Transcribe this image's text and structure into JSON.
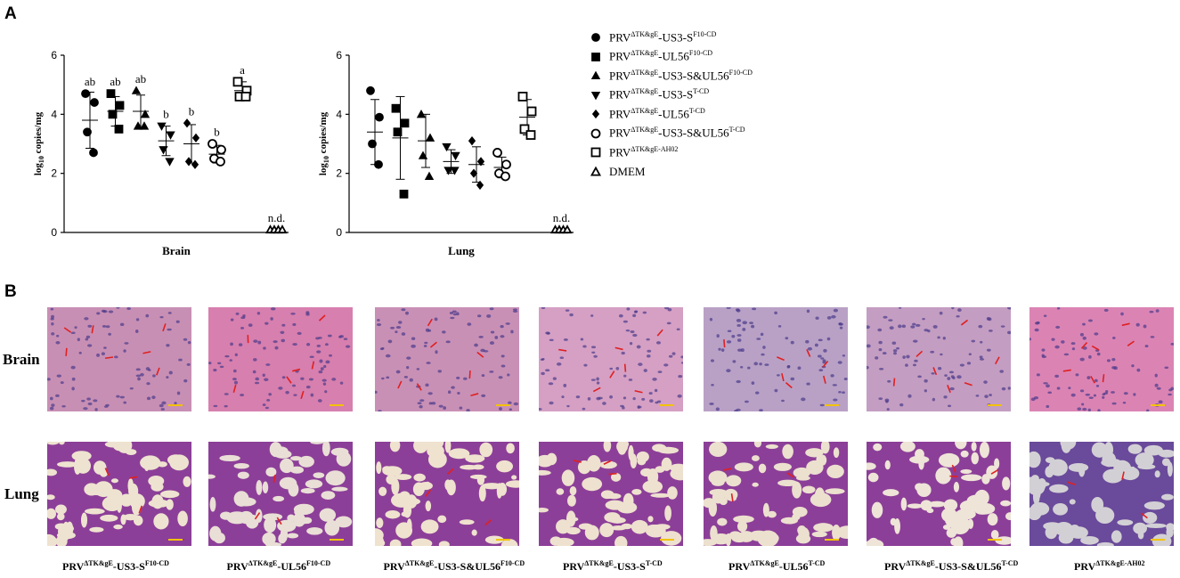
{
  "panel_a": {
    "label": "A"
  },
  "panel_b": {
    "label": "B"
  },
  "legend": [
    {
      "marker": "circle-filled",
      "base": "PRV",
      "sup1": "ΔTK&gE",
      "mid": "-US3-S",
      "sup2": "F10-CD"
    },
    {
      "marker": "square-filled",
      "base": "PRV",
      "sup1": "ΔTK&gE",
      "mid": "-UL56",
      "sup2": "F10-CD"
    },
    {
      "marker": "triangle-filled",
      "base": "PRV",
      "sup1": "ΔTK&gE",
      "mid": "-US3-S&UL56",
      "sup2": "F10-CD"
    },
    {
      "marker": "triangle-down-filled",
      "base": "PRV",
      "sup1": "ΔTK&gE",
      "mid": "-US3-S",
      "sup2": "T-CD"
    },
    {
      "marker": "diamond-filled",
      "base": "PRV",
      "sup1": "ΔTK&gE",
      "mid": "-UL56",
      "sup2": "T-CD"
    },
    {
      "marker": "circle-open",
      "base": "PRV",
      "sup1": "ΔTK&gE",
      "mid": "-US3-S&UL56",
      "sup2": "T-CD"
    },
    {
      "marker": "square-open",
      "base": "PRV",
      "sup1": "ΔTK&gE-AH02",
      "mid": "",
      "sup2": ""
    },
    {
      "marker": "triangle-open",
      "base": "DMEM",
      "sup1": "",
      "mid": "",
      "sup2": ""
    }
  ],
  "chart_data": [
    {
      "type": "scatter",
      "title": "",
      "xlabel": "Brain",
      "ylabel_parts": [
        "log",
        "10",
        " copies/mg"
      ],
      "ylim": [
        0,
        6
      ],
      "yticks": [
        "0",
        "2",
        "4",
        "6"
      ],
      "groups": [
        {
          "marker": "circle-filled",
          "points": [
            4.7,
            4.4,
            3.4,
            2.7
          ],
          "mean": 3.8,
          "sd": 0.95,
          "letter": "ab"
        },
        {
          "marker": "square-filled",
          "points": [
            4.7,
            4.3,
            4.0,
            3.5
          ],
          "mean": 4.1,
          "sd": 0.5,
          "letter": "ab"
        },
        {
          "marker": "triangle-filled",
          "points": [
            4.8,
            4.0,
            3.6,
            3.6
          ],
          "mean": 4.1,
          "sd": 0.55,
          "letter": "ab"
        },
        {
          "marker": "triangle-down-filled",
          "points": [
            3.6,
            3.3,
            2.8,
            2.4
          ],
          "mean": 3.1,
          "sd": 0.5,
          "letter": "b"
        },
        {
          "marker": "diamond-filled",
          "points": [
            3.7,
            3.2,
            2.4,
            2.3
          ],
          "mean": 3.0,
          "sd": 0.65,
          "letter": "b"
        },
        {
          "marker": "circle-open",
          "points": [
            3.0,
            2.8,
            2.5,
            2.4
          ],
          "mean": 2.65,
          "sd": 0.3,
          "letter": "b"
        },
        {
          "marker": "square-open",
          "points": [
            5.1,
            4.8,
            4.6,
            4.6
          ],
          "mean": 4.8,
          "sd": 0.3,
          "letter": "a"
        },
        {
          "marker": "triangle-open",
          "points": [
            0,
            0,
            0,
            0
          ],
          "mean": 0,
          "sd": 0,
          "letter": "n.d."
        }
      ]
    },
    {
      "type": "scatter",
      "title": "",
      "xlabel": "Lung",
      "ylabel_parts": [
        "log",
        "10",
        " copies/mg"
      ],
      "ylim": [
        0,
        6
      ],
      "yticks": [
        "0",
        "2",
        "4",
        "6"
      ],
      "groups": [
        {
          "marker": "circle-filled",
          "points": [
            4.8,
            3.9,
            3.0,
            2.3
          ],
          "mean": 3.4,
          "sd": 1.1,
          "letter": ""
        },
        {
          "marker": "square-filled",
          "points": [
            4.2,
            3.7,
            3.4,
            1.3
          ],
          "mean": 3.2,
          "sd": 1.4,
          "letter": ""
        },
        {
          "marker": "triangle-filled",
          "points": [
            4.0,
            3.2,
            2.6,
            1.9
          ],
          "mean": 3.1,
          "sd": 0.9,
          "letter": ""
        },
        {
          "marker": "triangle-down-filled",
          "points": [
            2.9,
            2.6,
            2.1,
            2.1
          ],
          "mean": 2.4,
          "sd": 0.4,
          "letter": ""
        },
        {
          "marker": "diamond-filled",
          "points": [
            3.1,
            2.4,
            2.0,
            1.6
          ],
          "mean": 2.3,
          "sd": 0.6,
          "letter": ""
        },
        {
          "marker": "circle-open",
          "points": [
            2.7,
            2.3,
            2.0,
            1.9
          ],
          "mean": 2.2,
          "sd": 0.35,
          "letter": ""
        },
        {
          "marker": "square-open",
          "points": [
            4.6,
            4.1,
            3.5,
            3.3
          ],
          "mean": 3.9,
          "sd": 0.6,
          "letter": ""
        },
        {
          "marker": "triangle-open",
          "points": [
            0,
            0,
            0,
            0
          ],
          "mean": 0,
          "sd": 0,
          "letter": "n.d."
        }
      ]
    }
  ],
  "micrographs": {
    "row_labels": [
      "Brain",
      "Lung"
    ],
    "brain_colors": [
      "#c88fb4",
      "#d77fae",
      "#c990b6",
      "#d5a0c4",
      "#b9a1c6",
      "#c49dc2",
      "#db84b4"
    ],
    "lung_colors": [
      "#eee3d0",
      "#e9dfd6",
      "#efe2cf",
      "#eee1cf",
      "#ece0cf",
      "#eee4d8",
      "#d2d0d5"
    ],
    "scale_bar_color": "#f2c300",
    "arrow_color": "#e02020",
    "captions": [
      {
        "base": "PRV",
        "sup1": "ΔTK&gE",
        "mid": "-US3-S",
        "sup2": "F10-CD"
      },
      {
        "base": "PRV",
        "sup1": "ΔTK&gE",
        "mid": "-UL56",
        "sup2": "F10-CD"
      },
      {
        "base": "PRV",
        "sup1": "ΔTK&gE",
        "mid": "-US3-S&UL56",
        "sup2": "F10-CD"
      },
      {
        "base": "PRV",
        "sup1": "ΔTK&gE",
        "mid": "-US3-S",
        "sup2": "T-CD"
      },
      {
        "base": "PRV",
        "sup1": "ΔTK&gE",
        "mid": "-UL56",
        "sup2": "T-CD"
      },
      {
        "base": "PRV",
        "sup1": "ΔTK&gE",
        "mid": "-US3-S&UL56",
        "sup2": "T-CD"
      },
      {
        "base": "PRV",
        "sup1": "ΔTK&gE-AH02",
        "mid": "",
        "sup2": ""
      }
    ]
  }
}
